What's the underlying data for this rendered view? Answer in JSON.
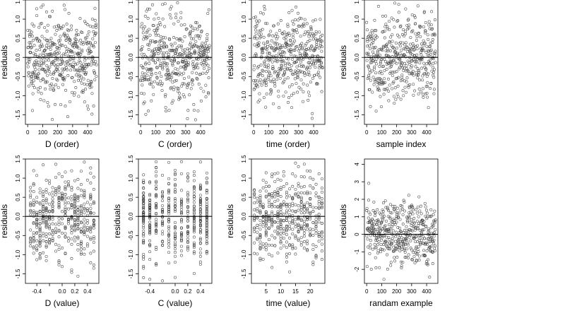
{
  "chart_data": [
    {
      "type": "scatter",
      "xlabel": "D (order)",
      "ylabel": "residuals",
      "xlim": [
        -15,
        475
      ],
      "ylim": [
        -1.75,
        1.5
      ],
      "xticks": [
        0,
        100,
        200,
        300,
        400
      ],
      "yticks": [
        -1.5,
        -1.0,
        -0.5,
        0.0,
        0.5,
        1.0,
        1.5
      ],
      "ytick_labels": [
        "-1.5",
        "-1.0",
        "-0.5",
        "0.0",
        "0.5",
        "1.0",
        "1.5"
      ],
      "hline": 0,
      "pattern": "index",
      "n": 460,
      "sd": 0.55,
      "seed": 11
    },
    {
      "type": "scatter",
      "xlabel": "C (order)",
      "ylabel": "residuals",
      "xlim": [
        -15,
        475
      ],
      "ylim": [
        -1.75,
        1.5
      ],
      "xticks": [
        0,
        100,
        200,
        300,
        400
      ],
      "yticks": [
        -1.5,
        -1.0,
        -0.5,
        0.0,
        0.5,
        1.0,
        1.5
      ],
      "ytick_labels": [
        "-1.5",
        "-1.0",
        "-0.5",
        "0.0",
        "0.5",
        "1.0",
        "1.5"
      ],
      "hline": 0,
      "pattern": "index",
      "n": 460,
      "sd": 0.55,
      "seed": 23
    },
    {
      "type": "scatter",
      "xlabel": "time (order)",
      "ylabel": "residuals",
      "xlim": [
        -15,
        475
      ],
      "ylim": [
        -1.75,
        1.5
      ],
      "xticks": [
        0,
        100,
        200,
        300,
        400
      ],
      "yticks": [
        -1.5,
        -1.0,
        -0.5,
        0.0,
        0.5,
        1.0,
        1.5
      ],
      "ytick_labels": [
        "-1.5",
        "-1.0",
        "-0.5",
        "0.0",
        "0.5",
        "1.0",
        "1.5"
      ],
      "hline": 0,
      "pattern": "index",
      "n": 460,
      "sd": 0.55,
      "seed": 37
    },
    {
      "type": "scatter",
      "xlabel": "sample index",
      "ylabel": "residuals",
      "xlim": [
        -15,
        475
      ],
      "ylim": [
        -1.75,
        1.5
      ],
      "xticks": [
        0,
        100,
        200,
        300,
        400
      ],
      "yticks": [
        -1.5,
        -1.0,
        -0.5,
        0.0,
        0.5,
        1.0,
        1.5
      ],
      "ytick_labels": [
        "-1.5",
        "-1.0",
        "-0.5",
        "0.0",
        "0.5",
        "1.0",
        "1.5"
      ],
      "hline": 0,
      "pattern": "index",
      "n": 460,
      "sd": 0.55,
      "seed": 41
    },
    {
      "type": "scatter",
      "xlabel": "D (value)",
      "ylabel": "residuals",
      "xlim": [
        -0.58,
        0.58
      ],
      "ylim": [
        -1.75,
        1.5
      ],
      "xticks": [
        -0.4,
        -0.2,
        0.0,
        0.2,
        0.4
      ],
      "xtick_labels": [
        "-0.4",
        "",
        "0.0",
        "0.2",
        "0.4"
      ],
      "yticks": [
        -1.5,
        -1.0,
        -0.5,
        0.0,
        0.5,
        1.0,
        1.5
      ],
      "ytick_labels": [
        "-1.5",
        "-1.0",
        "-0.5",
        "0.0",
        "0.5",
        "1.0",
        "1.5"
      ],
      "hline": 0,
      "pattern": "grid",
      "grid_min": -0.5,
      "grid_max": 0.5,
      "grid_step": 0.05,
      "n": 460,
      "sd": 0.55,
      "seed": 53
    },
    {
      "type": "scatter",
      "xlabel": "C (value)",
      "ylabel": "residuals",
      "xlim": [
        -0.58,
        0.58
      ],
      "ylim": [
        -1.75,
        1.5
      ],
      "xticks": [
        -0.4,
        0.0,
        0.2,
        0.4
      ],
      "xtick_labels": [
        "-0.4",
        "0.0",
        "0.2",
        "0.4"
      ],
      "yticks": [
        -1.5,
        -1.0,
        -0.5,
        0.0,
        0.5,
        1.0,
        1.5
      ],
      "ytick_labels": [
        "-1.5",
        "-1.0",
        "-0.5",
        "0.0",
        "0.5",
        "1.0",
        "1.5"
      ],
      "hline": 0,
      "pattern": "grid",
      "grid_min": -0.5,
      "grid_max": 0.5,
      "grid_step": 0.1,
      "n": 460,
      "sd": 0.55,
      "seed": 67
    },
    {
      "type": "scatter",
      "xlabel": "time (value)",
      "ylabel": "residuals",
      "xlim": [
        0,
        25
      ],
      "ylim": [
        -1.75,
        1.5
      ],
      "xticks": [
        5,
        10,
        15,
        20
      ],
      "yticks": [
        -1.5,
        -1.0,
        -0.5,
        0.0,
        0.5,
        1.0,
        1.5
      ],
      "ytick_labels": [
        "-1.5",
        "-1.0",
        "-0.5",
        "0.0",
        "0.5",
        "1.0",
        "1.5"
      ],
      "hline": 0,
      "pattern": "grid",
      "grid_min": 1,
      "grid_max": 24,
      "grid_step": 1,
      "n": 460,
      "sd": 0.55,
      "seed": 79
    },
    {
      "type": "scatter",
      "xlabel": "randam example",
      "ylabel": "residuals",
      "xlim": [
        -15,
        475
      ],
      "ylim": [
        -2.8,
        4.3
      ],
      "xticks": [
        0,
        100,
        200,
        300,
        400
      ],
      "yticks": [
        -2,
        -1,
        0,
        1,
        2,
        3,
        4
      ],
      "ytick_labels": [
        "-2",
        "-1",
        "0",
        "1",
        "2",
        "3",
        "4"
      ],
      "hline": 0,
      "pattern": "index",
      "n": 460,
      "sd": 0.95,
      "seed": 97
    }
  ]
}
